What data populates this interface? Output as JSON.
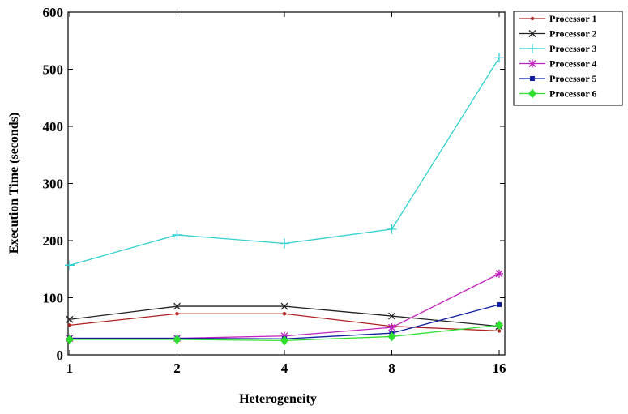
{
  "chart_data": {
    "type": "line",
    "title": "",
    "xlabel": "Heterogeneity",
    "ylabel": "Execution Time (seconds)",
    "categories": [
      "1",
      "2",
      "4",
      "8",
      "16"
    ],
    "ylim": [
      0,
      600
    ],
    "yticks": [
      0,
      100,
      200,
      300,
      400,
      500,
      600
    ],
    "grid": false,
    "legend_position": "top-right-outside",
    "series": [
      {
        "name": "Processor 1",
        "color": "#b02020",
        "marker": "dot",
        "values": [
          52,
          72,
          72,
          50,
          42
        ]
      },
      {
        "name": "Processor 2",
        "color": "#222222",
        "marker": "x",
        "values": [
          62,
          85,
          85,
          68,
          50
        ]
      },
      {
        "name": "Processor 3",
        "color": "#30d0d0",
        "marker": "plus",
        "values": [
          157,
          210,
          195,
          220,
          520
        ]
      },
      {
        "name": "Processor 4",
        "color": "#c020c0",
        "marker": "star",
        "values": [
          29,
          29,
          33,
          48,
          142
        ]
      },
      {
        "name": "Processor 5",
        "color": "#1020a0",
        "marker": "square",
        "values": [
          29,
          29,
          28,
          38,
          88
        ]
      },
      {
        "name": "Processor 6",
        "color": "#30e030",
        "marker": "diamond",
        "values": [
          27,
          27,
          25,
          32,
          52
        ]
      }
    ]
  }
}
